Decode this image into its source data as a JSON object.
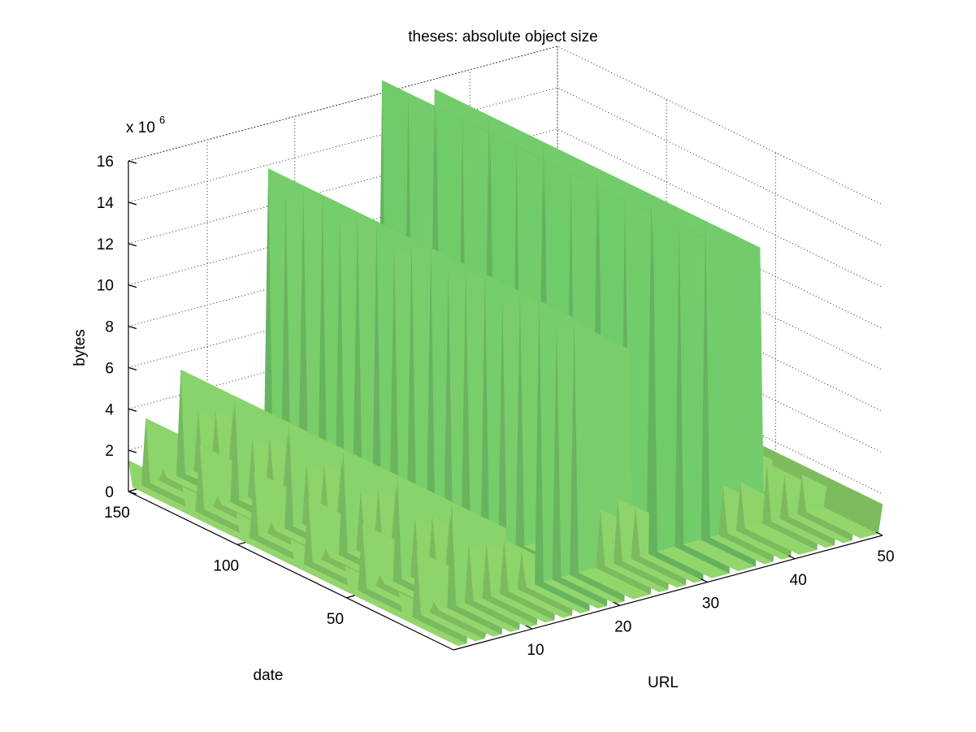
{
  "chart_data": {
    "type": "surface",
    "title": "theses: absolute object size",
    "xlabel": "URL",
    "ylabel": "date",
    "zlabel": "bytes",
    "z_multiplier": "x 10",
    "z_exponent": "6",
    "xlim": [
      1,
      50
    ],
    "ylim": [
      1,
      150
    ],
    "zlim": [
      0,
      16
    ],
    "x_ticks": [
      "10",
      "20",
      "30",
      "40",
      "50"
    ],
    "y_ticks": [
      "50",
      "100",
      "150"
    ],
    "z_ticks": [
      "0",
      "2",
      "4",
      "6",
      "8",
      "10",
      "12",
      "14",
      "16"
    ],
    "grid": true,
    "colormap": "summer",
    "ridges": [
      {
        "url": 1,
        "value": 1.5
      },
      {
        "url": 3,
        "value": 3.3
      },
      {
        "url": 5,
        "value": 0.6
      },
      {
        "url": 7,
        "value": 5.2
      },
      {
        "url": 9,
        "value": 3.0
      },
      {
        "url": 11,
        "value": 2.8
      },
      {
        "url": 13,
        "value": 2.7
      },
      {
        "url": 15,
        "value": 1.9
      },
      {
        "url": 17,
        "value": 13.8
      },
      {
        "url": 19,
        "value": 12.4
      },
      {
        "url": 21,
        "value": 12.3
      },
      {
        "url": 24,
        "value": 2.9
      },
      {
        "url": 26,
        "value": 3.2
      },
      {
        "url": 28,
        "value": 2.6
      },
      {
        "url": 30,
        "value": 16.6
      },
      {
        "url": 33,
        "value": 15.6
      },
      {
        "url": 36,
        "value": 15.5
      },
      {
        "url": 38,
        "value": 2.5
      },
      {
        "url": 40,
        "value": 2.4
      },
      {
        "url": 43,
        "value": 3.0
      },
      {
        "url": 45,
        "value": 2.2
      },
      {
        "url": 47,
        "value": 2.0
      },
      {
        "url": 50,
        "value": 1.5
      }
    ]
  }
}
